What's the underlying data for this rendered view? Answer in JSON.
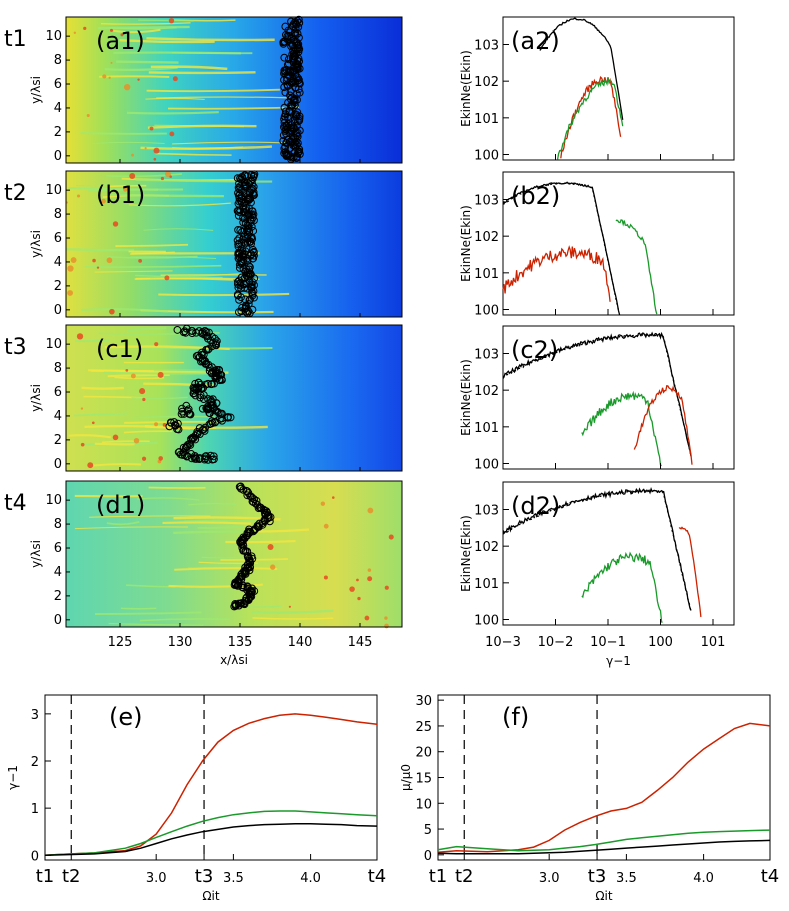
{
  "row_labels": [
    "t1",
    "t2",
    "t3",
    "t4"
  ],
  "maps": {
    "panel_labels": [
      "(a1)",
      "(b1)",
      "(c1)",
      "(d1)"
    ],
    "ylabel": "y/λsi",
    "xlabel": "x/λsi",
    "x_ticks": [
      "125",
      "130",
      "135",
      "140",
      "145"
    ],
    "y_ticks": [
      "0",
      "2",
      "4",
      "6",
      "8",
      "10"
    ]
  },
  "spectra": {
    "panel_labels": [
      "(a2)",
      "(b2)",
      "(c2)",
      "(d2)"
    ],
    "ylabel": "EkinNe(Ekin)",
    "xlabel": "γ−1",
    "x_ticks": [
      "10−3",
      "10−2",
      "10−1",
      "100",
      "101"
    ],
    "y_ticks": [
      "100",
      "101",
      "102",
      "103"
    ]
  },
  "colors": {
    "total": "#000000",
    "red": "#cc2200",
    "green": "#1a9a2a"
  },
  "chart_data": [
    {
      "type": "line",
      "label": "(e)",
      "xlabel": "Ωit",
      "ylabel": "γ−1",
      "x_ticks": [
        "t1",
        "t2",
        "3.0",
        "t3",
        "3.5",
        "4.0",
        "t4"
      ],
      "x_tick_values": [
        2.28,
        2.45,
        3.0,
        3.31,
        3.5,
        4.0,
        4.43
      ],
      "y_ticks": [
        "0",
        "1",
        "2",
        "3"
      ],
      "xlim": [
        2.28,
        4.43
      ],
      "ylim": [
        -0.1,
        3.4
      ],
      "dashed_lines_x": [
        2.45,
        3.31
      ],
      "x": [
        2.28,
        2.4,
        2.6,
        2.8,
        2.9,
        3.0,
        3.1,
        3.2,
        3.3,
        3.4,
        3.5,
        3.6,
        3.7,
        3.8,
        3.9,
        4.0,
        4.1,
        4.2,
        4.3,
        4.43
      ],
      "series": [
        {
          "color": "red",
          "values": [
            0,
            0.02,
            0.05,
            0.1,
            0.2,
            0.45,
            0.9,
            1.5,
            2.0,
            2.4,
            2.65,
            2.8,
            2.9,
            2.97,
            3.0,
            2.97,
            2.93,
            2.88,
            2.83,
            2.78
          ]
        },
        {
          "color": "green",
          "values": [
            0,
            0.02,
            0.05,
            0.15,
            0.25,
            0.38,
            0.5,
            0.62,
            0.72,
            0.8,
            0.86,
            0.9,
            0.93,
            0.94,
            0.94,
            0.92,
            0.9,
            0.88,
            0.86,
            0.84
          ]
        },
        {
          "color": "total",
          "values": [
            0,
            0.01,
            0.03,
            0.08,
            0.15,
            0.25,
            0.35,
            0.43,
            0.5,
            0.55,
            0.6,
            0.63,
            0.65,
            0.66,
            0.67,
            0.67,
            0.66,
            0.65,
            0.63,
            0.62
          ]
        }
      ]
    },
    {
      "type": "line",
      "label": "(f)",
      "xlabel": "Ωit",
      "ylabel": "μ/μ0",
      "x_ticks": [
        "t1",
        "t2",
        "3.0",
        "t3",
        "3.5",
        "4.0",
        "t4"
      ],
      "x_tick_values": [
        2.28,
        2.45,
        3.0,
        3.31,
        3.5,
        4.0,
        4.43
      ],
      "y_ticks": [
        "0",
        "5",
        "10",
        "15",
        "20",
        "25",
        "30"
      ],
      "xlim": [
        2.28,
        4.43
      ],
      "ylim": [
        -1,
        31
      ],
      "dashed_lines_x": [
        2.45,
        3.31
      ],
      "x": [
        2.28,
        2.4,
        2.6,
        2.8,
        2.9,
        3.0,
        3.1,
        3.2,
        3.3,
        3.4,
        3.5,
        3.6,
        3.7,
        3.8,
        3.9,
        4.0,
        4.1,
        4.2,
        4.3,
        4.43
      ],
      "series": [
        {
          "color": "red",
          "values": [
            0.5,
            0.8,
            0.6,
            1.0,
            1.5,
            2.8,
            4.8,
            6.3,
            7.5,
            8.5,
            9.0,
            10.2,
            12.5,
            15.0,
            18.0,
            20.5,
            22.5,
            24.5,
            25.5,
            25.0
          ]
        },
        {
          "color": "green",
          "values": [
            1.0,
            1.6,
            1.2,
            0.8,
            0.9,
            1.0,
            1.3,
            1.6,
            2.0,
            2.5,
            3.0,
            3.3,
            3.6,
            3.9,
            4.2,
            4.4,
            4.5,
            4.6,
            4.7,
            4.8
          ]
        },
        {
          "color": "total",
          "values": [
            0.3,
            0.2,
            0.2,
            0.2,
            0.3,
            0.4,
            0.5,
            0.7,
            0.9,
            1.1,
            1.3,
            1.5,
            1.7,
            1.9,
            2.1,
            2.3,
            2.5,
            2.6,
            2.7,
            2.8
          ]
        }
      ]
    }
  ]
}
